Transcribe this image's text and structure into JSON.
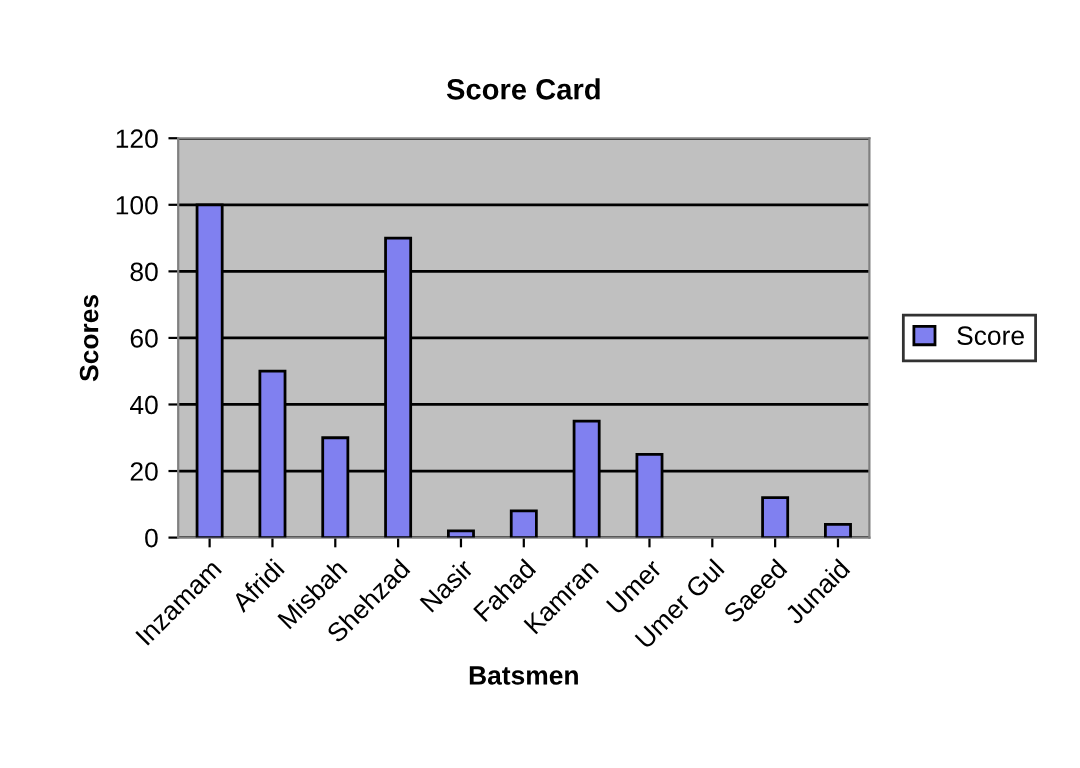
{
  "chart_data": {
    "type": "bar",
    "title": "Score Card",
    "xlabel": "Batsmen",
    "ylabel": "Scores",
    "categories": [
      "Inzamam",
      "Afridi",
      "Misbah",
      "Shehzad",
      "Nasir",
      "Fahad",
      "Kamran",
      "Umer",
      "Umer Gul",
      "Saeed",
      "Junaid"
    ],
    "series": [
      {
        "name": "Score",
        "color": "#8080f0",
        "values": [
          100,
          50,
          30,
          90,
          2,
          8,
          35,
          25,
          null,
          12,
          4
        ]
      }
    ],
    "ylim": [
      0,
      120
    ],
    "yticks": [
      0,
      20,
      40,
      60,
      80,
      100,
      120
    ],
    "grid": "y",
    "legend": "right"
  }
}
